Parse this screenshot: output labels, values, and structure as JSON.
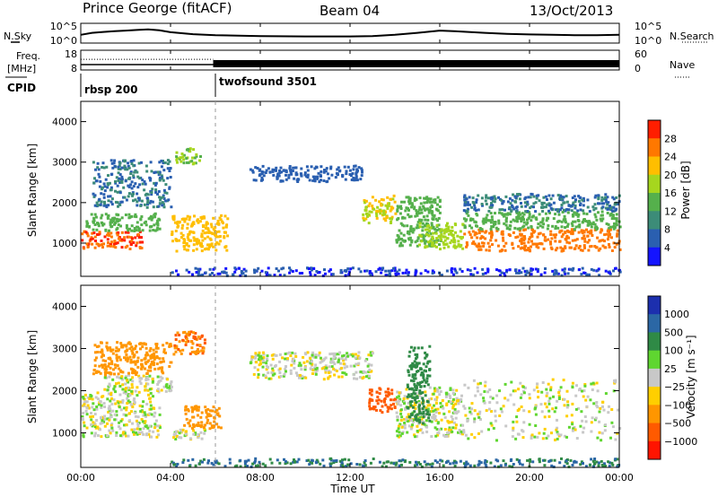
{
  "header": {
    "station": "Prince George (fitACF)",
    "beam": "Beam 04",
    "date": "13/Oct/2013"
  },
  "side_labels": {
    "nsky": "N.Sky",
    "freq": "Freq.",
    "freq_unit": "[MHz]",
    "cpid": "CPID",
    "nsearch": "N.Search",
    "nave": "Nave"
  },
  "cpid_modes": [
    "rbsp 200",
    "twofsound 3501"
  ],
  "colors": {
    "power": [
      "#1414ff",
      "#2a5fb0",
      "#3c8c78",
      "#55b04c",
      "#a6d61e",
      "#ffbe00",
      "#ff7800",
      "#ff1e00"
    ],
    "velocity": [
      "#1c2fae",
      "#2b67a5",
      "#2f8a46",
      "#5fd630",
      "#c8c8c8",
      "#ffcf00",
      "#ff9600",
      "#ff5a00",
      "#ff1400"
    ],
    "series": "#000000"
  },
  "chart_data": [
    {
      "type": "line",
      "name": "noise",
      "x_ticks": [
        "00:00",
        "04:00",
        "08:00",
        "12:00",
        "16:00",
        "20:00",
        "00:00"
      ],
      "left_ticks": [
        "10^5",
        "10^0"
      ],
      "right_ticks": [
        "10^5",
        "10^0"
      ],
      "series": [
        {
          "name": "N.Sky",
          "x_hours": [
            0,
            0.5,
            1,
            1.5,
            2,
            2.5,
            3,
            3.5,
            4,
            5,
            6,
            8,
            10,
            12,
            13,
            14,
            15,
            16,
            17,
            18,
            19,
            20,
            21,
            22,
            23,
            24
          ],
          "log_values": [
            2.0,
            2.6,
            2.9,
            3.1,
            3.3,
            3.5,
            3.7,
            3.4,
            2.8,
            2.2,
            1.9,
            1.6,
            1.5,
            1.5,
            1.6,
            2.0,
            2.6,
            3.3,
            3.0,
            2.6,
            2.3,
            2.1,
            2.0,
            1.9,
            1.9,
            2.0
          ]
        }
      ]
    },
    {
      "type": "line",
      "name": "frequency",
      "left_ticks": [
        "18",
        "8"
      ],
      "right_ticks": [
        "60",
        "0"
      ],
      "freq_mhz": [
        {
          "from_h": 0,
          "to_h": 24,
          "value": 10.2
        }
      ],
      "nave": [
        {
          "from_h": 0,
          "to_h": 5.9,
          "value": 33,
          "style": "dotted"
        },
        {
          "from_h": 5.9,
          "to_h": 24,
          "value": 20,
          "style": "band"
        }
      ]
    },
    {
      "type": "heatmap",
      "name": "power",
      "title": "",
      "xlabel": "",
      "ylabel": "Slant Range [km]",
      "y_ticks": [
        "1000",
        "2000",
        "3000",
        "4000"
      ],
      "ylim": [
        180,
        4500
      ],
      "xlim_hours": [
        0,
        24
      ],
      "colorbar_label": "Power [dB]",
      "colorbar_ticks": [
        "4",
        "8",
        "12",
        "16",
        "20",
        "24",
        "28"
      ],
      "colorbar_range": [
        0,
        32
      ],
      "echo_regions": [
        {
          "t": [
            0.0,
            2.8
          ],
          "r": [
            850,
            1300
          ],
          "value": 28
        },
        {
          "t": [
            0.2,
            3.5
          ],
          "r": [
            1300,
            1750
          ],
          "value": 14
        },
        {
          "t": [
            0.5,
            4.0
          ],
          "r": [
            1900,
            3100
          ],
          "value": 8
        },
        {
          "t": [
            4.2,
            5.3
          ],
          "r": [
            3000,
            3400
          ],
          "value": 16
        },
        {
          "t": [
            4.0,
            6.5
          ],
          "r": [
            800,
            1700
          ],
          "value": 22
        },
        {
          "t": [
            7.5,
            12.5
          ],
          "r": [
            2550,
            2950
          ],
          "value": 6
        },
        {
          "t": [
            12.5,
            14.0
          ],
          "r": [
            1500,
            2200
          ],
          "value": 20
        },
        {
          "t": [
            14.0,
            16.0
          ],
          "r": [
            900,
            2200
          ],
          "value": 14
        },
        {
          "t": [
            15.0,
            17.0
          ],
          "r": [
            850,
            1500
          ],
          "value": 18
        },
        {
          "t": [
            17.0,
            24.0
          ],
          "r": [
            800,
            1350
          ],
          "value": 26
        },
        {
          "t": [
            17.0,
            24.0
          ],
          "r": [
            1350,
            1800
          ],
          "value": 14
        },
        {
          "t": [
            17.0,
            24.0
          ],
          "r": [
            1800,
            2250
          ],
          "value": 8
        },
        {
          "t": [
            4.0,
            24.0
          ],
          "r": [
            180,
            380
          ],
          "value": 4
        }
      ]
    },
    {
      "type": "heatmap",
      "name": "velocity",
      "title": "",
      "xlabel": "Time UT",
      "ylabel": "Slant Range [km]",
      "y_ticks": [
        "1000",
        "2000",
        "3000",
        "4000"
      ],
      "ylim": [
        180,
        4500
      ],
      "xlim_hours": [
        0,
        24
      ],
      "colorbar_label": "Velocity [m s⁻¹]",
      "colorbar_ticks": [
        "1000",
        "500",
        "100",
        "25",
        "−25",
        "−100",
        "−500",
        "−1000"
      ],
      "echo_regions": [
        {
          "t": [
            0.0,
            3.5
          ],
          "r": [
            900,
            2000
          ],
          "value": 0
        },
        {
          "t": [
            1.0,
            4.0
          ],
          "r": [
            2000,
            2400
          ],
          "value": 0
        },
        {
          "t": [
            4.0,
            5.5
          ],
          "r": [
            800,
            1100
          ],
          "value": 0
        },
        {
          "t": [
            4.5,
            6.2
          ],
          "r": [
            1100,
            1650
          ],
          "value": -150
        },
        {
          "t": [
            0.5,
            4.0
          ],
          "r": [
            2400,
            3200
          ],
          "value": -200
        },
        {
          "t": [
            4.0,
            5.5
          ],
          "r": [
            2900,
            3450
          ],
          "value": -300
        },
        {
          "t": [
            7.5,
            13.0
          ],
          "r": [
            2300,
            2950
          ],
          "value": 0
        },
        {
          "t": [
            12.8,
            14.0
          ],
          "r": [
            1500,
            2100
          ],
          "value": -600
        },
        {
          "t": [
            14.0,
            17.0
          ],
          "r": [
            900,
            2100
          ],
          "value": 0
        },
        {
          "t": [
            14.5,
            15.5
          ],
          "r": [
            1200,
            3100
          ],
          "value": 200
        },
        {
          "t": [
            17.0,
            24.0
          ],
          "r": [
            800,
            2300
          ],
          "value": 0
        },
        {
          "t": [
            4.0,
            24.0
          ],
          "r": [
            180,
            380
          ],
          "value": 300
        }
      ]
    }
  ],
  "axis": {
    "time_label": "Time UT",
    "x_ticks": [
      "00:00",
      "04:00",
      "08:00",
      "12:00",
      "16:00",
      "20:00",
      "00:00"
    ]
  }
}
